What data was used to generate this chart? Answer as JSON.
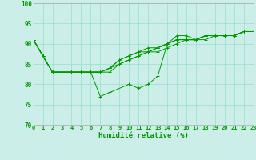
{
  "xlabel": "Humidité relative (%)",
  "bg_color": "#cceee8",
  "grid_color": "#99ddcc",
  "line_color": "#009900",
  "x": [
    0,
    1,
    2,
    3,
    4,
    5,
    6,
    7,
    8,
    9,
    10,
    11,
    12,
    13,
    14,
    15,
    16,
    17,
    18,
    19,
    20,
    21,
    22,
    23
  ],
  "series": [
    [
      91,
      87,
      83,
      83,
      83,
      83,
      83,
      77,
      78,
      null,
      80,
      79,
      80,
      82,
      90,
      92,
      92,
      91,
      92,
      92,
      92,
      92,
      93,
      93
    ],
    [
      91,
      87,
      83,
      83,
      83,
      83,
      83,
      83,
      83,
      85,
      86,
      87,
      88,
      88,
      89,
      90,
      91,
      91,
      91,
      92,
      92,
      92,
      93,
      93
    ],
    [
      91,
      87,
      83,
      83,
      83,
      83,
      83,
      83,
      84,
      85,
      86,
      87,
      88,
      89,
      90,
      91,
      91,
      91,
      92,
      92,
      92,
      92,
      93,
      93
    ],
    [
      91,
      87,
      83,
      83,
      83,
      83,
      83,
      83,
      84,
      86,
      87,
      88,
      88,
      89,
      90,
      91,
      91,
      91,
      92,
      92,
      92,
      92,
      93,
      93
    ],
    [
      91,
      87,
      83,
      83,
      83,
      83,
      83,
      83,
      84,
      86,
      87,
      88,
      89,
      89,
      90,
      91,
      91,
      91,
      92,
      92,
      92,
      92,
      93,
      93
    ]
  ],
  "ylim": [
    70,
    100
  ],
  "yticks": [
    70,
    75,
    80,
    85,
    90,
    95,
    100
  ],
  "xlim": [
    0,
    23
  ],
  "marker": "+",
  "tick_fontsize": 5,
  "xlabel_fontsize": 6.5
}
